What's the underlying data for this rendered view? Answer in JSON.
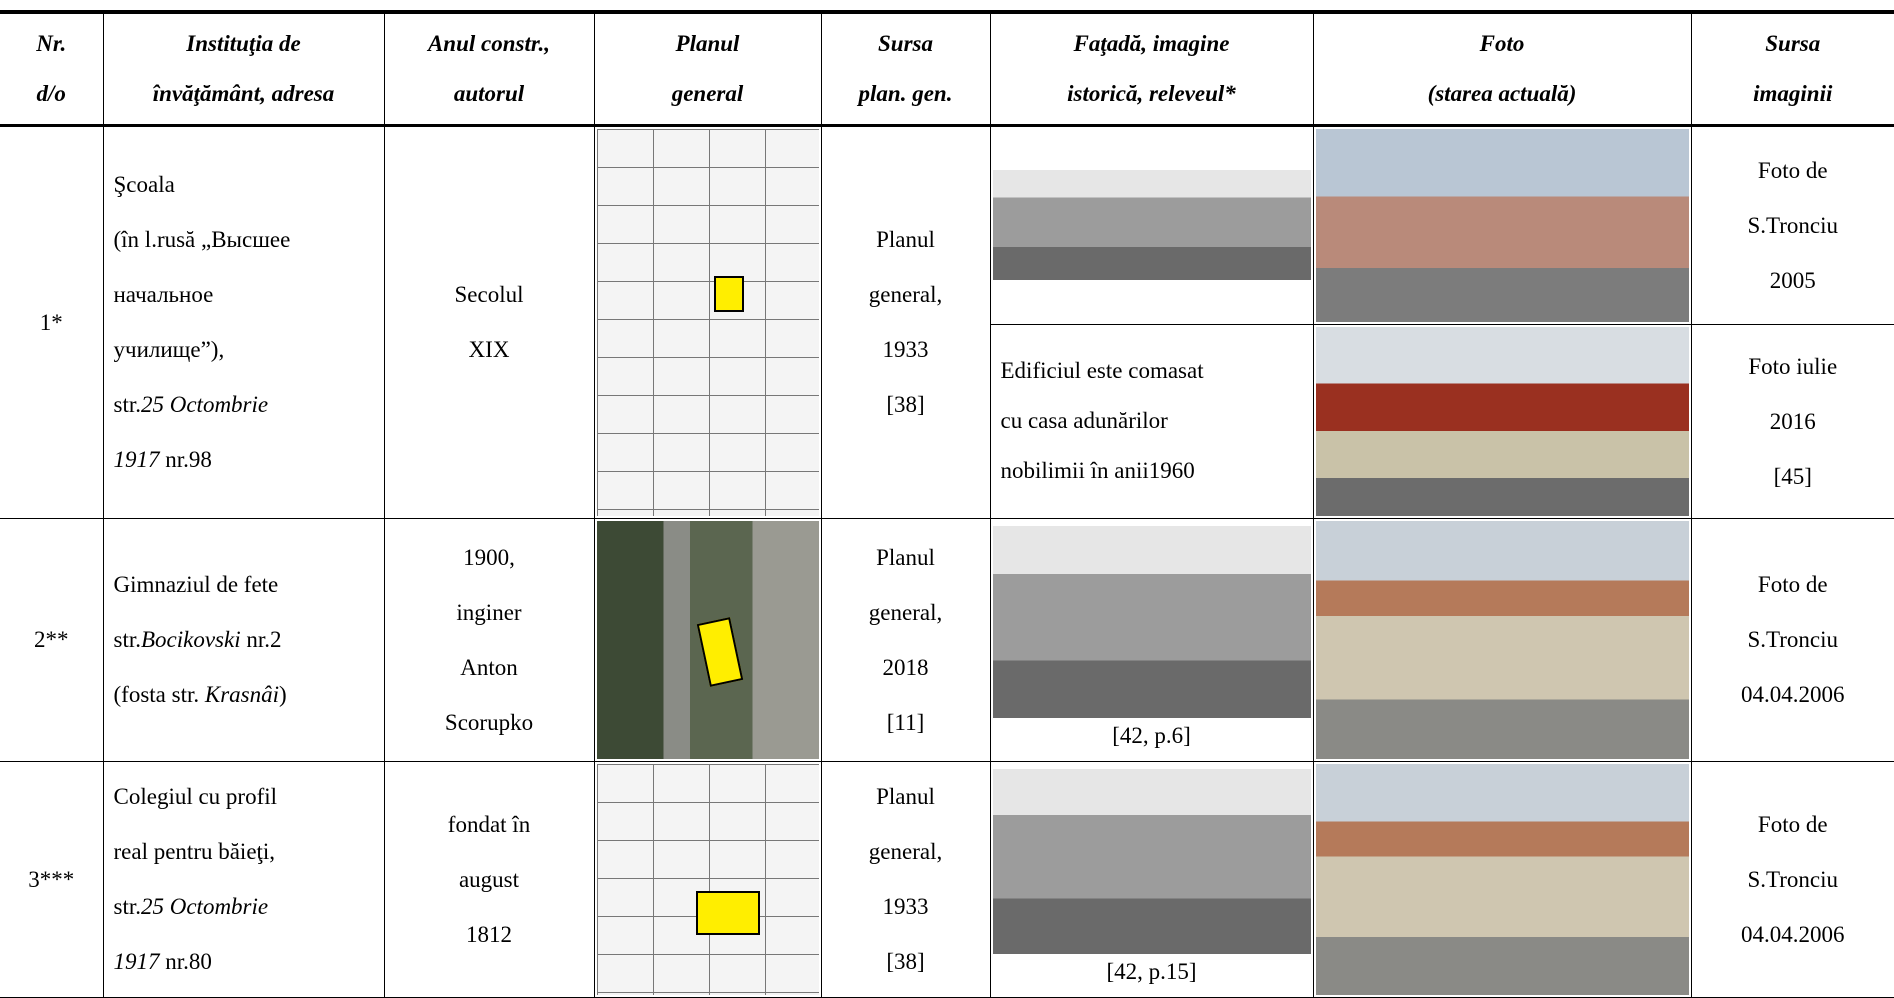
{
  "header": [
    [
      "Nr.",
      "d/o"
    ],
    [
      "Instituţia de",
      "învăţământ, adresa"
    ],
    [
      "Anul constr.,",
      "autorul"
    ],
    [
      "Planul",
      "general"
    ],
    [
      "Sursa",
      "plan. gen."
    ],
    [
      "Faţadă, imagine",
      "istorică, releveul*"
    ],
    [
      "Foto",
      "(starea actuală)"
    ],
    [
      "Sursa",
      "imaginii"
    ]
  ],
  "rows": [
    {
      "nr": "1*",
      "institution": [
        [
          "Şcoala"
        ],
        [
          "(în l.rusă „Высшее"
        ],
        [
          "начальное"
        ],
        [
          "училище”),"
        ],
        [
          "str.",
          {
            "text": "25 Octombrie",
            "italic": true
          }
        ],
        [
          {
            "text": "1917",
            "italic": true
          },
          " nr.98"
        ]
      ],
      "year": [
        "Secolul",
        "XIX"
      ],
      "plan_source": [
        "Planul",
        "general,",
        "1933",
        "[38]"
      ],
      "facade_note": [
        "Edificiul este comasat",
        "cu casa adunărilor",
        "nobilimii în anii1960"
      ],
      "photo_source": [
        "Foto de",
        "S.Tronciu",
        "2005"
      ],
      "photo_source_2": [
        "Foto iulie",
        "2016",
        "[45]"
      ]
    },
    {
      "nr": "2**",
      "institution": [
        [
          "Gimnaziul de fete"
        ],
        [
          "str.",
          {
            "text": "Bocikovski",
            "italic": true
          },
          " nr.2"
        ],
        [
          "(fosta str. ",
          {
            "text": "Krasnâi",
            "italic": true
          },
          ")"
        ]
      ],
      "year": [
        "1900,",
        "inginer",
        "Anton",
        "Scorupko"
      ],
      "plan_source": [
        "Planul",
        "general,",
        "2018",
        "[11]"
      ],
      "facade_caption": "[42, p.6]",
      "photo_source": [
        "Foto de",
        "S.Tronciu",
        "04.04.2006"
      ]
    },
    {
      "nr": "3***",
      "institution": [
        [
          "Colegiul cu profil"
        ],
        [
          "real pentru băieţi,"
        ],
        [
          "str.",
          {
            "text": "25 Octombrie",
            "italic": true
          }
        ],
        [
          {
            "text": "1917",
            "italic": true
          },
          " nr.80"
        ]
      ],
      "year": [
        "fondat în",
        "august",
        "1812"
      ],
      "plan_source": [
        "Planul",
        "general,",
        "1933",
        "[38]"
      ],
      "facade_caption": "[42, p.15]",
      "photo_source": [
        "Foto de",
        "S.Tronciu",
        "04.04.2006"
      ]
    }
  ]
}
